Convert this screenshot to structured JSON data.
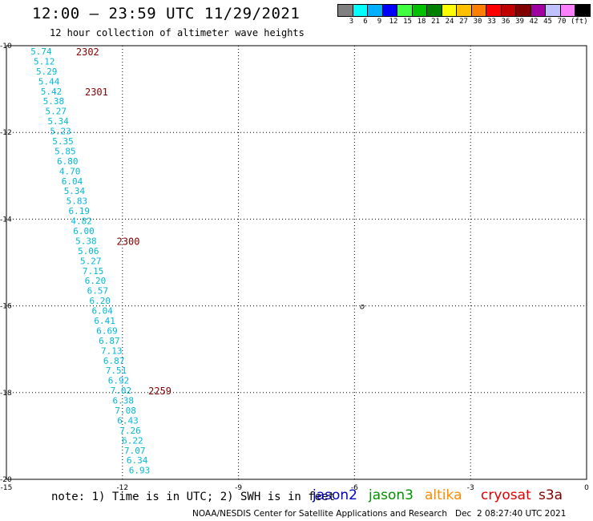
{
  "header": {
    "title": "12:00 — 23:59 UTC 11/29/2021",
    "subtitle": "12 hour collection of altimeter wave heights"
  },
  "legend": {
    "colors": [
      "#808080",
      "#00ffff",
      "#00b0ff",
      "#0000ff",
      "#40ff40",
      "#00c000",
      "#008000",
      "#ffff00",
      "#ffc000",
      "#ff8000",
      "#ff0000",
      "#c00000",
      "#800000",
      "#a000a0",
      "#c0c0ff",
      "#ff80ff",
      "#000000"
    ],
    "labels": [
      "3",
      "6",
      "9",
      "12",
      "15",
      "18",
      "21",
      "24",
      "27",
      "30",
      "33",
      "36",
      "39",
      "42",
      "45",
      "70"
    ],
    "unit": "(ft)"
  },
  "note": "note: 1) Time is in UTC; 2) SWH is in feet",
  "satellites": [
    {
      "name": "jason2",
      "color": "#0000c0"
    },
    {
      "name": "jason3",
      "color": "#009000"
    },
    {
      "name": "altika",
      "color": "#ff8c00"
    },
    {
      "name": "cryosat",
      "color": "#e00000"
    },
    {
      "name": "s3a",
      "color": "#800000"
    }
  ],
  "footer": {
    "credit": "NOAA/NESDIS Center for Satellite Applications and Research",
    "timestamp": "Dec  2 08:27:40 UTC 2021"
  },
  "chart_data": {
    "type": "scatter",
    "xlim": [
      -15,
      0
    ],
    "ylim": [
      -20,
      -10
    ],
    "x_ticks": [
      "-15",
      "-12",
      "-9",
      "-6",
      "-3",
      "0"
    ],
    "y_ticks": [
      "-10",
      "-12",
      "-14",
      "-16",
      "-18",
      "-20"
    ],
    "grid": true,
    "point_color": "#00b8d8",
    "time_color": "#800000",
    "points": [
      {
        "x": -14.1,
        "y": -10.13,
        "label": "5.74"
      },
      {
        "x": -14.02,
        "y": -10.36,
        "label": "5.12"
      },
      {
        "x": -13.96,
        "y": -10.59,
        "label": "5.29"
      },
      {
        "x": -13.9,
        "y": -10.82,
        "label": "5.44"
      },
      {
        "x": -13.84,
        "y": -11.05,
        "label": "5.42"
      },
      {
        "x": -13.78,
        "y": -11.28,
        "label": "5.38"
      },
      {
        "x": -13.72,
        "y": -11.51,
        "label": "5.27"
      },
      {
        "x": -13.66,
        "y": -11.74,
        "label": "5.34"
      },
      {
        "x": -13.6,
        "y": -11.97,
        "label": "5.23"
      },
      {
        "x": -13.54,
        "y": -12.2,
        "label": "5.35"
      },
      {
        "x": -13.48,
        "y": -12.43,
        "label": "5.85"
      },
      {
        "x": -13.42,
        "y": -12.66,
        "label": "6.80"
      },
      {
        "x": -13.36,
        "y": -12.89,
        "label": "4.70"
      },
      {
        "x": -13.3,
        "y": -13.12,
        "label": "6.04"
      },
      {
        "x": -13.24,
        "y": -13.35,
        "label": "5.34"
      },
      {
        "x": -13.18,
        "y": -13.58,
        "label": "5.83"
      },
      {
        "x": -13.12,
        "y": -13.81,
        "label": "6.19"
      },
      {
        "x": -13.06,
        "y": -14.04,
        "label": "4.82"
      },
      {
        "x": -13.0,
        "y": -14.27,
        "label": "6.00"
      },
      {
        "x": -12.94,
        "y": -14.5,
        "label": "5.38"
      },
      {
        "x": -12.88,
        "y": -14.73,
        "label": "5.06"
      },
      {
        "x": -12.82,
        "y": -14.96,
        "label": "5.27"
      },
      {
        "x": -12.76,
        "y": -15.19,
        "label": "7.15"
      },
      {
        "x": -12.7,
        "y": -15.42,
        "label": "6.20"
      },
      {
        "x": -12.64,
        "y": -15.65,
        "label": "6.57"
      },
      {
        "x": -12.58,
        "y": -15.88,
        "label": "6.20"
      },
      {
        "x": -12.52,
        "y": -16.11,
        "label": "6.04"
      },
      {
        "x": -12.46,
        "y": -16.34,
        "label": "6.41"
      },
      {
        "x": -12.4,
        "y": -16.57,
        "label": "6.69"
      },
      {
        "x": -12.34,
        "y": -16.8,
        "label": "6.87"
      },
      {
        "x": -12.28,
        "y": -17.03,
        "label": "7.13"
      },
      {
        "x": -12.22,
        "y": -17.26,
        "label": "6.87"
      },
      {
        "x": -12.16,
        "y": -17.49,
        "label": "7.51"
      },
      {
        "x": -12.1,
        "y": -17.72,
        "label": "6.92"
      },
      {
        "x": -12.04,
        "y": -17.95,
        "label": "7.02"
      },
      {
        "x": -11.98,
        "y": -18.18,
        "label": "6.38"
      },
      {
        "x": -11.92,
        "y": -18.41,
        "label": "7.08"
      },
      {
        "x": -11.86,
        "y": -18.64,
        "label": "6.43"
      },
      {
        "x": -11.8,
        "y": -18.87,
        "label": "7.26"
      },
      {
        "x": -11.74,
        "y": -19.1,
        "label": "6.22"
      },
      {
        "x": -11.68,
        "y": -19.33,
        "label": "7.07"
      },
      {
        "x": -11.62,
        "y": -19.56,
        "label": "6.34"
      },
      {
        "x": -11.56,
        "y": -19.79,
        "label": "6.93"
      }
    ],
    "time_labels": [
      {
        "x": -13.2,
        "y": -10.13,
        "label": "2302"
      },
      {
        "x": -12.97,
        "y": -11.05,
        "label": "2301"
      },
      {
        "x": -12.15,
        "y": -14.5,
        "label": "2300"
      },
      {
        "x": -11.33,
        "y": -17.95,
        "label": "2259"
      }
    ],
    "marker": {
      "x": -5.8,
      "y": -16.0,
      "label": "o"
    }
  }
}
